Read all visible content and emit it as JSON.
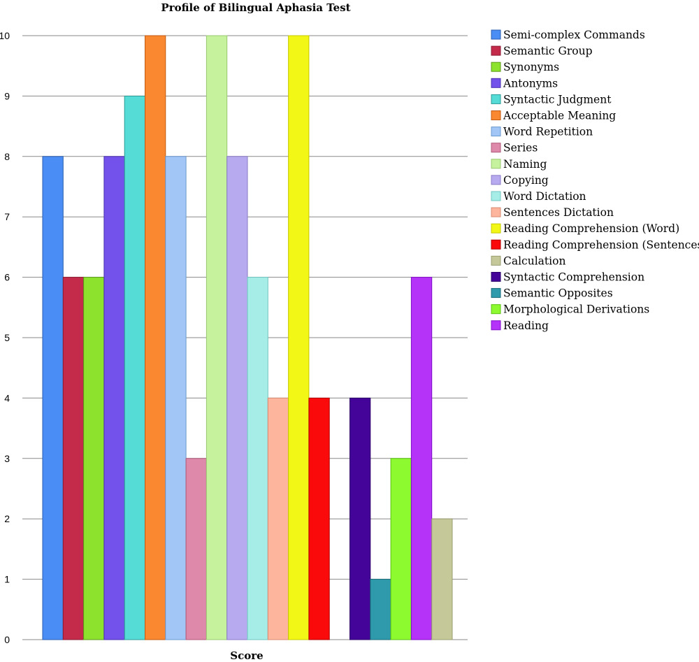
{
  "chart_data": {
    "type": "bar",
    "title": "Profile of Bilingual Aphasia Test",
    "xlabel": "Score",
    "ylabel": "",
    "ylim": [
      0,
      10
    ],
    "yticks": [
      0,
      1,
      2,
      3,
      4,
      5,
      6,
      7,
      8,
      9,
      10
    ],
    "grid": true,
    "legend_position": "right",
    "series": [
      {
        "name": "Semi-complex Commands",
        "value": 8,
        "color": "#4a8ef5",
        "border": "#2a5cb0"
      },
      {
        "name": "Semantic Group",
        "value": 6,
        "color": "#c42b4b",
        "border": "#8a1a30"
      },
      {
        "name": "Synonyms",
        "value": 6,
        "color": "#8de22e",
        "border": "#5a9a18"
      },
      {
        "name": "Antonyms",
        "value": 8,
        "color": "#7252ea",
        "border": "#4a30b0"
      },
      {
        "name": "Syntactic Judgment",
        "value": 9,
        "color": "#55dcd6",
        "border": "#2a9a95"
      },
      {
        "name": "Acceptable Meaning",
        "value": 10,
        "color": "#fa8830",
        "border": "#c05a10"
      },
      {
        "name": "Word Repetition",
        "value": 8,
        "color": "#a2c6f5",
        "border": "#6a9ad0"
      },
      {
        "name": "Series",
        "value": 3,
        "color": "#de88aa",
        "border": "#b05a7a"
      },
      {
        "name": "Naming",
        "value": 10,
        "color": "#c6f29e",
        "border": "#9ac870"
      },
      {
        "name": "Copying",
        "value": 8,
        "color": "#b8aaee",
        "border": "#8a7ac8"
      },
      {
        "name": "Word Dictation",
        "value": 6,
        "color": "#a6ede8",
        "border": "#70c5c0"
      },
      {
        "name": "Sentences Dictation",
        "value": 4,
        "color": "#fdb59d",
        "border": "#d88a70"
      },
      {
        "name": "Reading Comprehension (Word)",
        "value": 10,
        "color": "#f3f716",
        "border": "#c5c800"
      },
      {
        "name": "Reading Comprehension (Sentences)",
        "value": 4,
        "color": "#fa0a0a",
        "border": "#b00000"
      },
      {
        "name": "Calculation",
        "value": 0,
        "color": "#c5c99a",
        "border": "#9a9e70"
      },
      {
        "name": "Syntactic Comprehension",
        "value": 4,
        "color": "#44049a",
        "border": "#2a0068"
      },
      {
        "name": "Semantic Opposites",
        "value": 1,
        "color": "#2e9aac",
        "border": "#1a6a78"
      },
      {
        "name": "Morphological Derivations",
        "value": 3,
        "color": "#8cfa2e",
        "border": "#5ac010"
      },
      {
        "name": "Reading",
        "value": 6,
        "color": "#b532f8",
        "border": "#8010c8"
      },
      {
        "name": "",
        "value": 2,
        "color": "#c5c99a",
        "border": "#9a9e70"
      }
    ]
  }
}
